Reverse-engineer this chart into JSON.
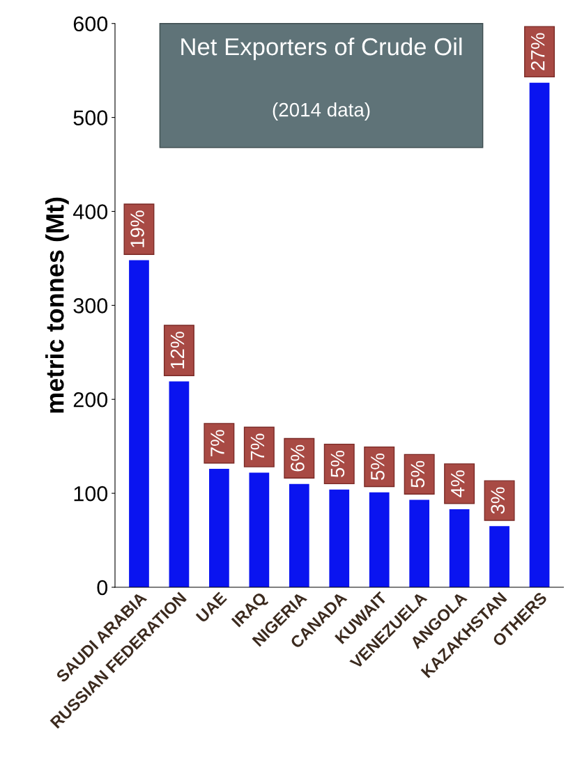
{
  "chart_data": {
    "type": "bar",
    "title": "Net Exporters of Crude Oil",
    "subtitle": "(2014 data)",
    "ylabel": "metric tonnes (Mt)",
    "categories": [
      "SAUDI ARABIA",
      "RUSSIAN FEDERATION",
      "UAE",
      "IRAQ",
      "NIGERIA",
      "CANADA",
      "KUWAIT",
      "VENEZUELA",
      "ANGOLA",
      "KAZAKHSTAN",
      "OTHERS"
    ],
    "values": [
      348,
      219,
      126,
      122,
      110,
      104,
      101,
      93,
      83,
      65,
      537
    ],
    "annotations": [
      {
        "text": "19%",
        "x": "SAUDI ARABIA",
        "y": 348
      },
      {
        "text": "12%",
        "x": "RUSSIAN FEDERATION",
        "y": 219
      },
      {
        "text": "7%",
        "x": "UAE",
        "y": 126
      },
      {
        "text": "7%",
        "x": "IRAQ",
        "y": 122
      },
      {
        "text": "6%",
        "x": "NIGERIA",
        "y": 110
      },
      {
        "text": "5%",
        "x": "CANADA",
        "y": 104
      },
      {
        "text": "5%",
        "x": "KUWAIT",
        "y": 101
      },
      {
        "text": "5%",
        "x": "VENEZUELA",
        "y": 93
      },
      {
        "text": "4%",
        "x": "ANGOLA",
        "y": 83
      },
      {
        "text": "3%",
        "x": "KAZAKHSTAN",
        "y": 65
      },
      {
        "text": "27%",
        "x": "OTHERS",
        "y": 537
      }
    ],
    "color": "#0a14f0",
    "ylim": [
      0,
      600
    ],
    "yticks": [
      0,
      100,
      200,
      300,
      400,
      500,
      600
    ],
    "grid": false
  }
}
